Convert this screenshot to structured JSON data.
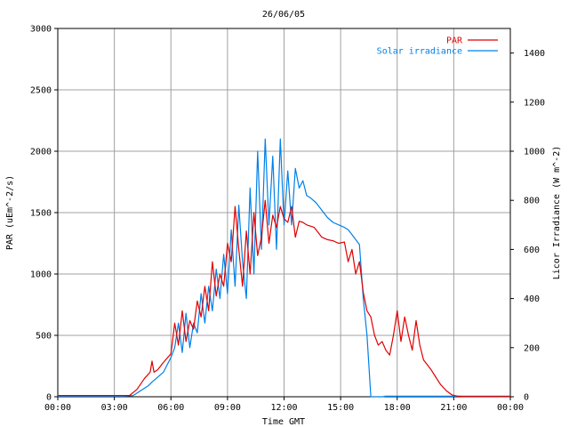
{
  "chart_data": {
    "type": "line",
    "title": "26/06/05",
    "xlabel": "Time GMT",
    "ylabel": "PAR (uEm^-2/s)",
    "y2label": "Licor Irradiance (W m^-2)",
    "x_unit": "hours",
    "x_range": [
      0,
      24
    ],
    "x_ticks": [
      0,
      3,
      6,
      9,
      12,
      15,
      18,
      21,
      24
    ],
    "x_tick_labels": [
      "00:00",
      "03:00",
      "06:00",
      "09:00",
      "12:00",
      "15:00",
      "18:00",
      "21:00",
      "00:00"
    ],
    "ylim": [
      0,
      3000
    ],
    "y_ticks": [
      0,
      500,
      1000,
      1500,
      2000,
      2500,
      3000
    ],
    "y_tick_labels": [
      "0",
      "500",
      "1000",
      "1500",
      "2000",
      "2500",
      "3000"
    ],
    "y2lim": [
      0,
      1500
    ],
    "y2_ticks": [
      0,
      200,
      400,
      600,
      800,
      1000,
      1200,
      1400
    ],
    "y2_tick_labels": [
      "0",
      "200",
      "400",
      "600",
      "800",
      "1000",
      "1200",
      "1400"
    ],
    "grid": true,
    "legend_position": "top-right",
    "series": [
      {
        "name": "PAR",
        "axis": "left",
        "color": "#e00000",
        "x": [
          0,
          3.8,
          4.2,
          4.6,
          4.9,
          5.0,
          5.1,
          5.3,
          5.6,
          6.0,
          6.2,
          6.4,
          6.6,
          6.8,
          7.0,
          7.2,
          7.4,
          7.6,
          7.8,
          8.0,
          8.2,
          8.4,
          8.6,
          8.8,
          9.0,
          9.2,
          9.4,
          9.6,
          9.8,
          10.0,
          10.2,
          10.4,
          10.6,
          10.8,
          11.0,
          11.2,
          11.4,
          11.6,
          11.8,
          12.0,
          12.2,
          12.4,
          12.6,
          12.8,
          13.0,
          13.2,
          13.4,
          13.6,
          13.8,
          14.0,
          14.3,
          14.6,
          14.9,
          15.2,
          15.4,
          15.6,
          15.8,
          16.0,
          16.2,
          16.4,
          16.6,
          16.8,
          17.0,
          17.2,
          17.4,
          17.6,
          17.8,
          18.0,
          18.2,
          18.4,
          18.6,
          18.8,
          19.0,
          19.2,
          19.4,
          19.6,
          19.8,
          20.0,
          20.3,
          20.6,
          20.9,
          21.2,
          21.5,
          22,
          24
        ],
        "y": [
          10,
          10,
          60,
          150,
          200,
          290,
          200,
          220,
          280,
          350,
          600,
          420,
          700,
          450,
          620,
          550,
          780,
          650,
          900,
          700,
          1100,
          820,
          1000,
          900,
          1250,
          1100,
          1550,
          1200,
          900,
          1350,
          1000,
          1500,
          1150,
          1300,
          1600,
          1250,
          1480,
          1380,
          1550,
          1450,
          1420,
          1550,
          1300,
          1430,
          1420,
          1400,
          1390,
          1380,
          1340,
          1300,
          1280,
          1270,
          1250,
          1260,
          1100,
          1200,
          1000,
          1100,
          850,
          700,
          650,
          500,
          420,
          450,
          380,
          340,
          500,
          700,
          450,
          650,
          500,
          380,
          620,
          420,
          300,
          260,
          220,
          170,
          100,
          50,
          15,
          5,
          2,
          2,
          2
        ]
      },
      {
        "name": "Solar irradiance",
        "axis": "right",
        "color": "#0080e8",
        "x": [
          0,
          3.5,
          4.0,
          4.5,
          4.8,
          5.0,
          5.3,
          5.6,
          6.0,
          6.2,
          6.4,
          6.6,
          6.8,
          7.0,
          7.2,
          7.4,
          7.6,
          7.8,
          8.0,
          8.2,
          8.4,
          8.6,
          8.8,
          9.0,
          9.2,
          9.4,
          9.6,
          9.8,
          10.0,
          10.2,
          10.4,
          10.6,
          10.8,
          11.0,
          11.2,
          11.4,
          11.6,
          11.8,
          12.0,
          12.2,
          12.4,
          12.6,
          12.8,
          13.0,
          13.2,
          13.4,
          13.7,
          14.0,
          14.3,
          14.6,
          14.9,
          15.2,
          15.4,
          15.6,
          15.8,
          16.0,
          16.2,
          16.4,
          16.6,
          16.8,
          17.0,
          17.2,
          17.4,
          24
        ],
        "y": [
          2,
          2,
          5,
          30,
          45,
          60,
          80,
          100,
          160,
          200,
          300,
          180,
          340,
          200,
          300,
          260,
          420,
          300,
          450,
          350,
          520,
          400,
          580,
          420,
          680,
          450,
          780,
          550,
          400,
          850,
          500,
          1000,
          600,
          1050,
          700,
          980,
          600,
          1050,
          700,
          920,
          700,
          930,
          850,
          880,
          820,
          810,
          790,
          760,
          730,
          710,
          700,
          690,
          680,
          660,
          640,
          620,
          400,
          250,
          0,
          0,
          0,
          0,
          2,
          2
        ]
      }
    ]
  }
}
